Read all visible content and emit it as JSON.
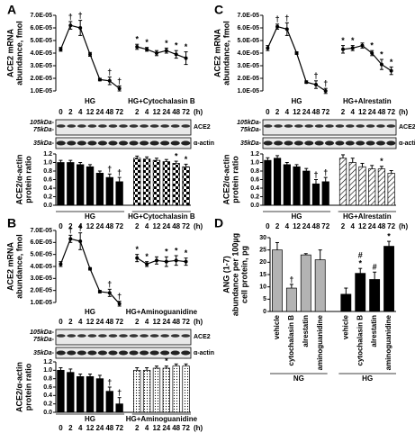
{
  "chart_data": [
    {
      "type": "line",
      "panel": "A",
      "ylabel": [
        "ACE2 mRNA",
        "abundance, fmol"
      ],
      "categories": [
        "0",
        "2",
        "4",
        "12",
        "24",
        "48",
        "72",
        "2",
        "4",
        "12",
        "24",
        "48",
        "72"
      ],
      "x_unit": "(h)",
      "ylim": [
        1e-05,
        7e-05
      ],
      "yticks": [
        {
          "value": 1e-05,
          "label": "1.0E-05"
        },
        {
          "value": 2e-05,
          "label": "2.0E-05"
        },
        {
          "value": 3e-05,
          "label": "3.0E-05"
        },
        {
          "value": 4e-05,
          "label": "4.0E-05"
        },
        {
          "value": 5e-05,
          "label": "5.0E-05"
        },
        {
          "value": 6e-05,
          "label": "6.0E-05"
        },
        {
          "value": 7e-05,
          "label": "7.0E-05"
        }
      ],
      "series": [
        {
          "name": "HG",
          "color": "#000000",
          "values": [
            4.3e-05,
            6.2e-05,
            6e-05,
            3.9e-05,
            1.9e-05,
            1.8e-05,
            1.2e-05,
            null,
            null,
            null,
            null,
            null,
            null
          ],
          "errors": [
            1.5e-06,
            3e-06,
            6e-06,
            1.5e-06,
            1e-06,
            3e-06,
            2e-06,
            null,
            null,
            null,
            null,
            null,
            null
          ],
          "markers": [
            null,
            [
              "†"
            ],
            [
              "†"
            ],
            null,
            null,
            [
              "†"
            ],
            [
              "†"
            ],
            null,
            null,
            null,
            null,
            null,
            null
          ]
        },
        {
          "name": "HG+Cytochalasin B",
          "color": "#000000",
          "values": [
            null,
            null,
            null,
            null,
            null,
            null,
            null,
            4.5e-05,
            4.3e-05,
            4e-05,
            4.2e-05,
            3.9e-05,
            3.6e-05
          ],
          "errors": [
            null,
            null,
            null,
            null,
            null,
            null,
            null,
            2e-06,
            1.5e-06,
            2e-06,
            2e-06,
            3e-06,
            5e-06
          ],
          "markers": [
            null,
            null,
            null,
            null,
            null,
            null,
            null,
            [
              "*"
            ],
            [
              "*"
            ],
            null,
            [
              "*"
            ],
            [
              "*"
            ],
            [
              "*"
            ]
          ]
        }
      ]
    },
    {
      "type": "bar",
      "ylabel": [
        "ACE2/α-actin",
        "protein ratio"
      ],
      "categories": [
        "0",
        "2",
        "4",
        "12",
        "24",
        "48",
        "72",
        "2",
        "4",
        "12",
        "24",
        "48",
        "72"
      ],
      "x_unit": "(h)",
      "ylim": [
        0,
        1.2
      ],
      "yticks": [
        {
          "value": 0,
          "label": "0.0"
        },
        0.2,
        0.4,
        0.6,
        0.8,
        {
          "value": 1,
          "label": "1.0"
        },
        1.2
      ],
      "series": [
        {
          "name": "HG",
          "color": "#000000",
          "values": [
            1.0,
            1.0,
            0.95,
            0.9,
            0.75,
            0.65,
            0.55,
            null,
            null,
            null,
            null,
            null,
            null
          ],
          "errors": [
            0.05,
            0.05,
            0.05,
            0.05,
            0.05,
            0.08,
            0.1,
            null,
            null,
            null,
            null,
            null,
            null
          ],
          "markers": [
            null,
            null,
            null,
            null,
            null,
            [
              "†"
            ],
            [
              "†"
            ],
            null,
            null,
            null,
            null,
            null,
            null
          ]
        },
        {
          "name": "HG+Cytochalasin B",
          "color": "#000000",
          "pattern": "checker",
          "values": [
            null,
            null,
            null,
            null,
            null,
            null,
            null,
            1.1,
            1.08,
            1.05,
            1.02,
            0.98,
            0.9
          ],
          "errors": [
            null,
            null,
            null,
            null,
            null,
            null,
            null,
            0.05,
            0.05,
            0.05,
            0.05,
            0.05,
            0.06
          ],
          "markers": [
            null,
            null,
            null,
            null,
            null,
            null,
            null,
            null,
            null,
            null,
            null,
            [
              "*"
            ],
            [
              "*"
            ]
          ]
        }
      ]
    },
    {
      "type": "line",
      "panel": "B",
      "ylabel": [
        "ACE2 mRNA",
        "abundance, fmol"
      ],
      "categories": [
        "0",
        "2",
        "4",
        "12",
        "24",
        "48",
        "72",
        "2",
        "4",
        "12",
        "24",
        "48",
        "72"
      ],
      "x_unit": "(h)",
      "ylim": [
        1e-05,
        7e-05
      ],
      "yticks": [
        {
          "value": 1e-05,
          "label": "1.0E-05"
        },
        {
          "value": 2e-05,
          "label": "2.0E-05"
        },
        {
          "value": 3e-05,
          "label": "3.0E-05"
        },
        {
          "value": 4e-05,
          "label": "4.0E-05"
        },
        {
          "value": 5e-05,
          "label": "5.0E-05"
        },
        {
          "value": 6e-05,
          "label": "6.0E-05"
        },
        {
          "value": 7e-05,
          "label": "7.0E-05"
        }
      ],
      "series": [
        {
          "name": "HG",
          "color": "#000000",
          "values": [
            4.2e-05,
            6.3e-05,
            6.1e-05,
            3.8e-05,
            1.9e-05,
            1.8e-05,
            9e-06,
            null,
            null,
            null,
            null,
            null,
            null
          ],
          "errors": [
            2e-06,
            3e-06,
            7e-06,
            1e-06,
            1e-06,
            3e-06,
            2e-06,
            null,
            null,
            null,
            null,
            null,
            null
          ],
          "markers": [
            null,
            [
              "†"
            ],
            [
              "†"
            ],
            null,
            null,
            [
              "†"
            ],
            [
              "†"
            ],
            null,
            null,
            null,
            null,
            null,
            null
          ]
        },
        {
          "name": "HG+Aminoguanidine",
          "color": "#000000",
          "values": [
            null,
            null,
            null,
            null,
            null,
            null,
            null,
            4.7e-05,
            4.2e-05,
            4.5e-05,
            4.4e-05,
            4.5e-05,
            4.4e-05
          ],
          "errors": [
            null,
            null,
            null,
            null,
            null,
            null,
            null,
            3e-06,
            2e-06,
            3e-06,
            4e-06,
            4e-06,
            3e-06
          ],
          "markers": [
            null,
            null,
            null,
            null,
            null,
            null,
            null,
            [
              "*"
            ],
            [
              "*"
            ],
            null,
            [
              "*"
            ],
            [
              "*"
            ],
            [
              "*"
            ]
          ]
        }
      ]
    },
    {
      "type": "bar",
      "ylabel": [
        "ACE2/α-actin",
        "protein ratio"
      ],
      "categories": [
        "0",
        "2",
        "4",
        "12",
        "24",
        "48",
        "72",
        "2",
        "4",
        "12",
        "24",
        "48",
        "72"
      ],
      "x_unit": "(h)",
      "ylim": [
        0,
        1.2
      ],
      "yticks": [
        {
          "value": 0,
          "label": "0.0"
        },
        0.2,
        0.4,
        0.6,
        0.8,
        {
          "value": 1,
          "label": "1.0"
        },
        1.2
      ],
      "series": [
        {
          "name": "HG",
          "color": "#000000",
          "values": [
            1.0,
            0.95,
            0.85,
            0.85,
            0.8,
            0.5,
            0.2,
            null,
            null,
            null,
            null,
            null,
            null
          ],
          "errors": [
            0.06,
            0.08,
            0.06,
            0.06,
            0.08,
            0.1,
            0.15,
            null,
            null,
            null,
            null,
            null,
            null
          ],
          "markers": [
            null,
            null,
            null,
            null,
            null,
            [
              "†"
            ],
            [
              "†"
            ],
            null,
            null,
            null,
            null,
            null,
            null
          ]
        },
        {
          "name": "HG+Aminoguanidine",
          "color": "#000000",
          "pattern": "dots",
          "values": [
            null,
            null,
            null,
            null,
            null,
            null,
            null,
            1.0,
            1.0,
            1.05,
            1.05,
            1.1,
            1.1
          ],
          "errors": [
            null,
            null,
            null,
            null,
            null,
            null,
            null,
            0.06,
            0.06,
            0.05,
            0.05,
            0.05,
            0.05
          ],
          "markers": [
            null,
            null,
            null,
            null,
            null,
            null,
            null,
            null,
            null,
            null,
            [
              "*"
            ],
            [
              "*"
            ],
            [
              "*"
            ]
          ]
        }
      ]
    },
    {
      "type": "line",
      "panel": "C",
      "ylabel": [
        "ACE2 mRNA",
        "abundance, fmol"
      ],
      "categories": [
        "0",
        "2",
        "4",
        "12",
        "24",
        "48",
        "72",
        "2",
        "4",
        "12",
        "24",
        "48",
        "72"
      ],
      "x_unit": "(h)",
      "ylim": [
        1e-05,
        7e-05
      ],
      "yticks": [
        {
          "value": 1e-05,
          "label": "1.0E-05"
        },
        {
          "value": 2e-05,
          "label": "2.0E-05"
        },
        {
          "value": 3e-05,
          "label": "3.0E-05"
        },
        {
          "value": 4e-05,
          "label": "4.0E-05"
        },
        {
          "value": 5e-05,
          "label": "5.0E-05"
        },
        {
          "value": 6e-05,
          "label": "6.0E-05"
        },
        {
          "value": 7e-05,
          "label": "7.0E-05"
        }
      ],
      "series": [
        {
          "name": "HG",
          "color": "#000000",
          "values": [
            4.4e-05,
            6.1e-05,
            5.9e-05,
            4e-05,
            1.7e-05,
            1.5e-05,
            1e-05,
            null,
            null,
            null,
            null,
            null,
            null
          ],
          "errors": [
            2e-06,
            2e-06,
            5e-06,
            1e-06,
            1e-06,
            3e-06,
            2e-06,
            null,
            null,
            null,
            null,
            null,
            null
          ],
          "markers": [
            null,
            [
              "†"
            ],
            [
              "†"
            ],
            null,
            null,
            [
              "†"
            ],
            [
              "†"
            ],
            null,
            null,
            null,
            null,
            null,
            null
          ]
        },
        {
          "name": "HG+Alrestatin",
          "color": "#000000",
          "values": [
            null,
            null,
            null,
            null,
            null,
            null,
            null,
            4.3e-05,
            4.4e-05,
            4.6e-05,
            4e-05,
            3.1e-05,
            2.6e-05
          ],
          "errors": [
            null,
            null,
            null,
            null,
            null,
            null,
            null,
            3e-06,
            2e-06,
            2e-06,
            2e-06,
            4e-06,
            3e-06
          ],
          "markers": [
            null,
            null,
            null,
            null,
            null,
            null,
            null,
            [
              "*"
            ],
            [
              "*"
            ],
            null,
            [
              "*"
            ],
            [
              "*"
            ],
            [
              "*"
            ]
          ]
        }
      ]
    },
    {
      "type": "bar",
      "ylabel": [
        "ACE2/α-actin",
        "protein ratio"
      ],
      "categories": [
        "0",
        "2",
        "4",
        "12",
        "24",
        "48",
        "72",
        "2",
        "4",
        "12",
        "24",
        "48",
        "72"
      ],
      "x_unit": "(h)",
      "ylim": [
        0,
        1.2
      ],
      "yticks": [
        {
          "value": 0,
          "label": "0.0"
        },
        0.2,
        0.4,
        0.6,
        0.8,
        {
          "value": 1,
          "label": "1.0"
        },
        1.2
      ],
      "series": [
        {
          "name": "HG",
          "color": "#000000",
          "values": [
            1.05,
            1.1,
            0.95,
            0.9,
            0.8,
            0.5,
            0.55,
            null,
            null,
            null,
            null,
            null,
            null
          ],
          "errors": [
            0.06,
            0.06,
            0.05,
            0.05,
            0.06,
            0.1,
            0.1,
            null,
            null,
            null,
            null,
            null,
            null
          ],
          "markers": [
            null,
            null,
            null,
            null,
            null,
            [
              "†"
            ],
            [
              "†"
            ],
            null,
            null,
            null,
            null,
            null,
            null
          ]
        },
        {
          "name": "HG+Alrestatin",
          "color": "#000000",
          "pattern": "hatch",
          "values": [
            null,
            null,
            null,
            null,
            null,
            null,
            null,
            1.1,
            1.0,
            0.9,
            0.85,
            0.85,
            0.75
          ],
          "errors": [
            null,
            null,
            null,
            null,
            null,
            null,
            null,
            0.08,
            0.1,
            0.08,
            0.08,
            0.06,
            0.06
          ],
          "markers": [
            null,
            null,
            null,
            null,
            null,
            null,
            null,
            null,
            null,
            null,
            null,
            [
              "*"
            ],
            null
          ]
        }
      ]
    },
    {
      "type": "bar",
      "panel": "D",
      "ylabel": [
        "ANG (1-7)",
        "abundance per 100µg",
        "cell protein, pg"
      ],
      "categories": [
        "vehicle",
        "cytochalasin B",
        "alrestatin",
        "aminoguanidine",
        "vehicle",
        "cytochalasin B",
        "alrestatin",
        "aminoguanidine"
      ],
      "ylim": [
        0,
        30
      ],
      "yticks": [
        0,
        5,
        10,
        15,
        20,
        25,
        30
      ],
      "series": [
        {
          "name": "NG",
          "color": "#b3b3b3",
          "values": [
            25,
            9.5,
            23,
            21,
            null,
            null,
            null,
            null
          ],
          "errors": [
            3,
            1.5,
            0.5,
            4,
            null,
            null,
            null,
            null
          ],
          "markers": [
            null,
            [
              "†"
            ],
            null,
            null,
            null,
            null,
            null,
            null
          ]
        },
        {
          "name": "HG",
          "color": "#000000",
          "values": [
            null,
            null,
            null,
            null,
            7,
            15.5,
            13,
            26.5
          ],
          "errors": [
            null,
            null,
            null,
            null,
            2.5,
            2,
            3,
            2
          ],
          "markers": [
            null,
            null,
            null,
            null,
            null,
            [
              "#",
              "*"
            ],
            [
              "#"
            ],
            [
              "*"
            ]
          ]
        }
      ]
    }
  ],
  "blots": [
    {
      "ladder": [
        "105kDa-",
        "75kDa-",
        "35kDa-"
      ],
      "bands": [
        "ACE2",
        "α-actin"
      ]
    },
    {
      "ladder": [
        "105kDa-",
        "75kDa-",
        "35kDa-"
      ],
      "bands": [
        "ACE2",
        "α-actin"
      ]
    },
    {
      "ladder": [
        "105kDa-",
        "75kDa-",
        "35kDa-"
      ],
      "bands": [
        "ACE2",
        "α-actin"
      ]
    }
  ]
}
